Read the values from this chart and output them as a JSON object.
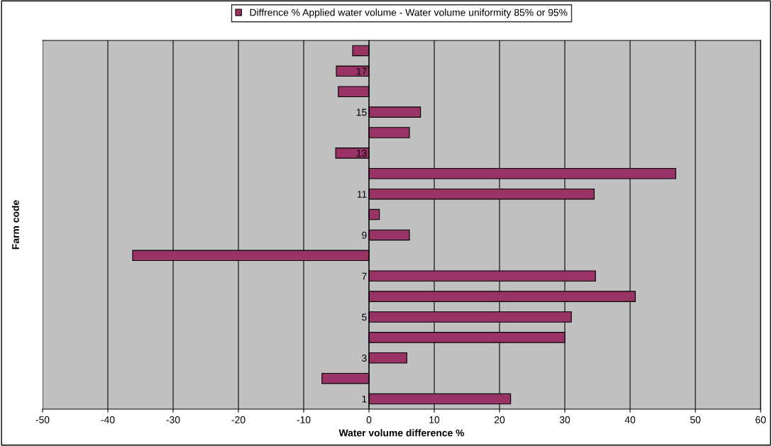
{
  "chart_data": {
    "type": "bar",
    "orientation": "horizontal",
    "xlabel": "Water volume difference %",
    "ylabel": "Farm code",
    "categories": [
      null,
      "17",
      null,
      "15",
      null,
      "13",
      null,
      "11",
      null,
      "9",
      null,
      "7",
      null,
      "5",
      null,
      "3",
      null,
      "1"
    ],
    "series": [
      {
        "name": "Diffrence % Applied water volume - Water volume uniformity 85% or 95%",
        "color": "#993366",
        "values": [
          -2.5,
          -5.0,
          -4.7,
          7.9,
          6.2,
          -5.1,
          47.0,
          34.5,
          1.6,
          6.2,
          -36.2,
          34.7,
          40.8,
          31.0,
          30.0,
          5.8,
          -7.2,
          21.7
        ]
      }
    ],
    "xlim": [
      -50,
      60
    ],
    "xticks": [
      -50,
      -40,
      -30,
      -20,
      -10,
      0,
      10,
      20,
      30,
      40,
      50,
      60
    ],
    "grid": "x",
    "legend": "top"
  }
}
